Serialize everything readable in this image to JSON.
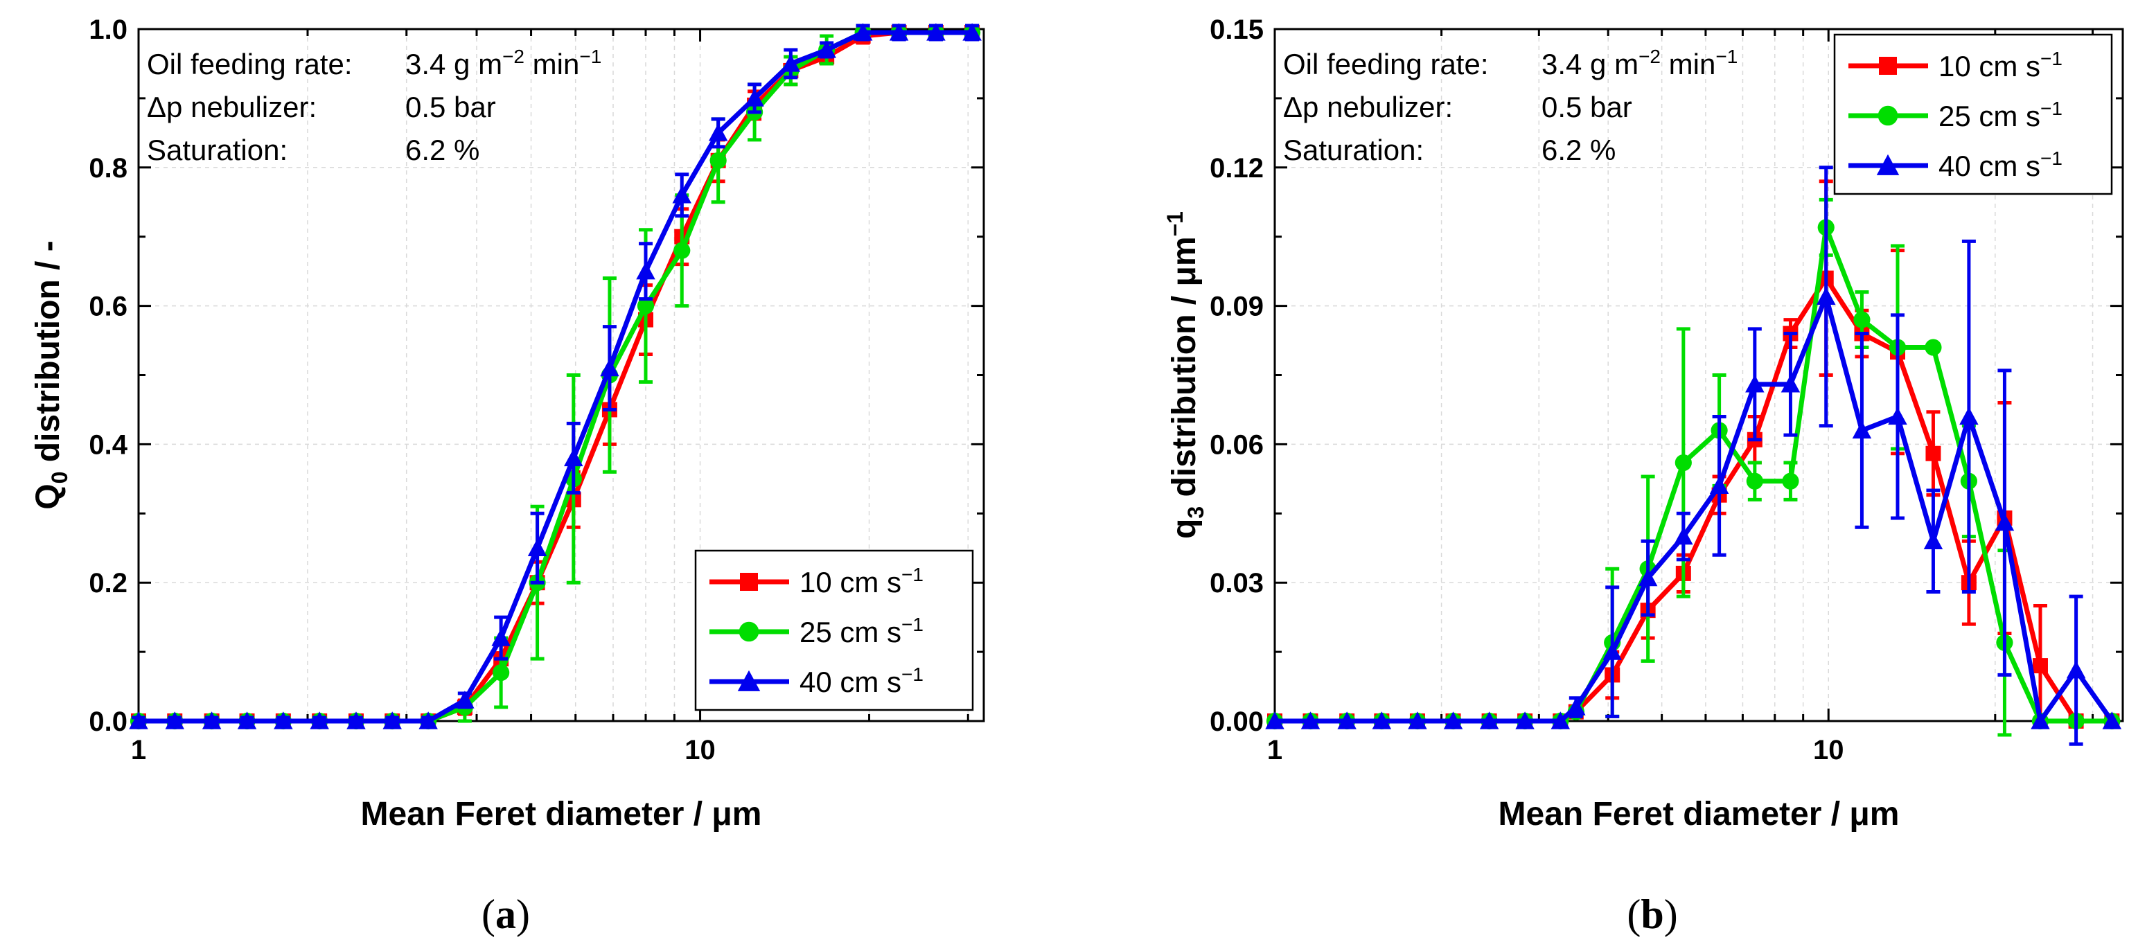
{
  "chart_data": [
    {
      "type": "line",
      "panel_label": "(a)",
      "xlabel": "Mean Feret diameter / μm",
      "ylabel": "Q",
      "ylabel_sub": "0",
      "ylabel_rest": " distribution / -",
      "xscale": "log",
      "xlim": [
        1,
        32
      ],
      "ylim": [
        0,
        1.0
      ],
      "x_ticks": [
        1,
        10
      ],
      "x_tick_labels": [
        "1",
        "10"
      ],
      "y_ticks": [
        0,
        0.2,
        0.4,
        0.6,
        0.8,
        1.0
      ],
      "y_tick_labels": [
        "0.0",
        "0.2",
        "0.4",
        "0.6",
        "0.8",
        "1.0"
      ],
      "grid": true,
      "legend_position": "bottom-right",
      "annotations": {
        "line1_label": "Oil feeding rate:",
        "line1_value": "3.4 g m",
        "line1_sup": "−2",
        "line1_tail": " min",
        "line1_tail_sup": "−1",
        "line2_label": "Δp nebulizer:",
        "line2_value": "0.5 bar",
        "line3_label": "Saturation:",
        "line3_value": "6.2 %"
      },
      "x": [
        1.0,
        1.16,
        1.35,
        1.56,
        1.81,
        2.1,
        2.44,
        2.83,
        3.28,
        3.81,
        4.42,
        5.13,
        5.95,
        6.9,
        8.0,
        9.28,
        10.77,
        12.5,
        14.5,
        16.8,
        19.5,
        22.6,
        26.3,
        30.5
      ],
      "series": [
        {
          "name": "10 cm s",
          "name_sup": "−1",
          "color": "#ff0000",
          "marker": "square",
          "values": [
            0,
            0,
            0,
            0,
            0,
            0,
            0,
            0,
            0,
            0.02,
            0.09,
            0.2,
            0.32,
            0.45,
            0.58,
            0.7,
            0.81,
            0.89,
            0.94,
            0.96,
            0.99,
            0.995,
            0.995,
            0.995
          ],
          "errors": [
            0.005,
            0.005,
            0.005,
            0.005,
            0.005,
            0.005,
            0.005,
            0.005,
            0.005,
            0.01,
            0.02,
            0.03,
            0.04,
            0.05,
            0.05,
            0.04,
            0.03,
            0.02,
            0.02,
            0.01,
            0.01,
            0.01,
            0.01,
            0.01
          ]
        },
        {
          "name": "25 cm s",
          "name_sup": "−1",
          "color": "#00dd00",
          "marker": "circle",
          "values": [
            0,
            0,
            0,
            0,
            0,
            0,
            0,
            0,
            0,
            0.02,
            0.07,
            0.2,
            0.35,
            0.5,
            0.6,
            0.68,
            0.81,
            0.88,
            0.94,
            0.97,
            0.995,
            0.995,
            0.995,
            0.995
          ],
          "errors": [
            0.005,
            0.005,
            0.005,
            0.005,
            0.005,
            0.005,
            0.005,
            0.005,
            0.005,
            0.02,
            0.05,
            0.11,
            0.15,
            0.14,
            0.11,
            0.08,
            0.06,
            0.04,
            0.02,
            0.02,
            0.01,
            0.01,
            0.01,
            0.01
          ]
        },
        {
          "name": "40 cm s",
          "name_sup": "−1",
          "color": "#0000ee",
          "marker": "triangle",
          "values": [
            0,
            0,
            0,
            0,
            0,
            0,
            0,
            0,
            0,
            0.03,
            0.12,
            0.25,
            0.38,
            0.51,
            0.65,
            0.76,
            0.85,
            0.9,
            0.95,
            0.97,
            0.995,
            0.995,
            0.995,
            0.995
          ],
          "errors": [
            0.005,
            0.005,
            0.005,
            0.005,
            0.005,
            0.005,
            0.005,
            0.005,
            0.005,
            0.01,
            0.03,
            0.05,
            0.05,
            0.06,
            0.04,
            0.03,
            0.02,
            0.02,
            0.02,
            0.01,
            0.01,
            0.01,
            0.01,
            0.01
          ]
        }
      ]
    },
    {
      "type": "line",
      "panel_label": "(b)",
      "xlabel": "Mean Feret diameter / μm",
      "ylabel": "q",
      "ylabel_sub": "3",
      "ylabel_rest": " distribution / μm",
      "ylabel_sup": "−1",
      "xscale": "log",
      "xlim": [
        1,
        34
      ],
      "ylim": [
        0,
        0.15
      ],
      "x_ticks": [
        1,
        10
      ],
      "x_tick_labels": [
        "1",
        "10"
      ],
      "y_ticks": [
        0,
        0.03,
        0.06,
        0.09,
        0.12,
        0.15
      ],
      "y_tick_labels": [
        "0.00",
        "0.03",
        "0.06",
        "0.09",
        "0.12",
        "0.15"
      ],
      "grid": true,
      "legend_position": "top-right",
      "annotations": {
        "line1_label": "Oil feeding rate:",
        "line1_value": "3.4 g m",
        "line1_sup": "−2",
        "line1_tail": " min",
        "line1_tail_sup": "−1",
        "line2_label": "Δp nebulizer:",
        "line2_value": "0.5 bar",
        "line3_label": "Saturation:",
        "line3_value": "6.2 %"
      },
      "x": [
        1.0,
        1.16,
        1.35,
        1.56,
        1.81,
        2.1,
        2.44,
        2.83,
        3.28,
        3.5,
        4.07,
        4.72,
        5.47,
        6.35,
        7.36,
        8.54,
        9.9,
        11.49,
        13.33,
        15.46,
        17.93,
        20.8,
        24.13,
        28.0,
        32.5
      ],
      "series": [
        {
          "name": "10 cm s",
          "name_sup": "−1",
          "color": "#ff0000",
          "marker": "square",
          "values": [
            0,
            0,
            0,
            0,
            0,
            0,
            0,
            0,
            0,
            0.002,
            0.01,
            0.024,
            0.032,
            0.049,
            0.061,
            0.084,
            0.096,
            0.084,
            0.08,
            0.058,
            0.03,
            0.044,
            0.012,
            0,
            0
          ],
          "errors": [
            0,
            0,
            0,
            0,
            0,
            0,
            0,
            0,
            0,
            0.001,
            0.005,
            0.006,
            0.004,
            0.004,
            0.005,
            0.003,
            0.021,
            0.005,
            0.022,
            0.009,
            0.009,
            0.025,
            0.013,
            0,
            0
          ]
        },
        {
          "name": "25 cm s",
          "name_sup": "−1",
          "color": "#00dd00",
          "marker": "circle",
          "values": [
            0,
            0,
            0,
            0,
            0,
            0,
            0,
            0,
            0,
            0.002,
            0.017,
            0.033,
            0.056,
            0.063,
            0.052,
            0.052,
            0.107,
            0.087,
            0.081,
            0.081,
            0.052,
            0.017,
            0,
            0,
            0
          ],
          "errors": [
            0,
            0,
            0,
            0,
            0,
            0,
            0,
            0,
            0,
            0.001,
            0.016,
            0.02,
            0.029,
            0.012,
            0.004,
            0.004,
            0.006,
            0.006,
            0.022,
            0.001,
            0.012,
            0.02,
            0,
            0,
            0
          ]
        },
        {
          "name": "40 cm s",
          "name_sup": "−1",
          "color": "#0000ee",
          "marker": "triangle",
          "values": [
            0,
            0,
            0,
            0,
            0,
            0,
            0,
            0,
            0,
            0.003,
            0.015,
            0.031,
            0.04,
            0.051,
            0.073,
            0.073,
            0.092,
            0.063,
            0.066,
            0.039,
            0.066,
            0.043,
            0,
            0.011,
            0
          ],
          "errors": [
            0,
            0,
            0,
            0,
            0,
            0,
            0,
            0,
            0,
            0.002,
            0.014,
            0.008,
            0.005,
            0.015,
            0.012,
            0.011,
            0.028,
            0.021,
            0.022,
            0.011,
            0.038,
            0.033,
            0,
            0.016,
            0
          ]
        }
      ]
    }
  ]
}
